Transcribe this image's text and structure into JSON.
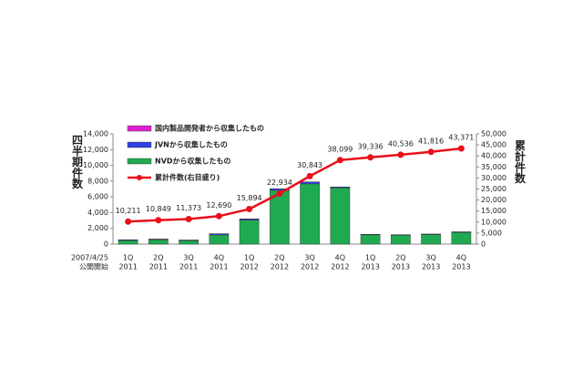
{
  "chart_data": {
    "type": "bar_line",
    "categories": [
      [
        "1Q",
        "2011"
      ],
      [
        "2Q",
        "2011"
      ],
      [
        "3Q",
        "2011"
      ],
      [
        "4Q",
        "2011"
      ],
      [
        "1Q",
        "2012"
      ],
      [
        "2Q",
        "2012"
      ],
      [
        "3Q",
        "2012"
      ],
      [
        "4Q",
        "2012"
      ],
      [
        "1Q",
        "2013"
      ],
      [
        "2Q",
        "2013"
      ],
      [
        "3Q",
        "2013"
      ],
      [
        "4Q",
        "2013"
      ]
    ],
    "x_start_note": [
      "2007/4/25",
      "公開開始"
    ],
    "y_label": "四半期件数",
    "y2_label": "累計件数",
    "series": [
      {
        "name": "国内製品開発者から収集したもの",
        "color": "#e020d0",
        "type": "bar",
        "values": [
          10,
          10,
          10,
          10,
          10,
          10,
          10,
          10,
          10,
          10,
          10,
          10
        ]
      },
      {
        "name": "JVNから収集したもの",
        "color": "#3040e0",
        "type": "bar",
        "values": [
          80,
          90,
          80,
          150,
          150,
          200,
          250,
          100,
          60,
          60,
          60,
          70
        ]
      },
      {
        "name": "NVDから収集したもの",
        "color": "#1faa50",
        "type": "bar",
        "values": [
          460,
          540,
          430,
          1160,
          3040,
          6830,
          7650,
          7150,
          1170,
          1130,
          1210,
          1480
        ]
      },
      {
        "name": "累計件数(右目盛り)",
        "color": "#e8101a",
        "type": "line",
        "axis": "y2",
        "values": [
          10211,
          10849,
          11373,
          12690,
          15894,
          22934,
          30843,
          38099,
          39336,
          40536,
          41816,
          43371
        ],
        "value_labels": [
          "10,211",
          "10,849",
          "11,373",
          "12,690",
          "15,894",
          "22,934",
          "30,843",
          "38,099",
          "39,336",
          "40,536",
          "41,816",
          "43,371"
        ]
      }
    ],
    "ylim": [
      0,
      14000
    ],
    "yticks": [
      0,
      {
        "value": 2000,
        "label": "2,000"
      },
      {
        "value": 4000,
        "label": "4,000"
      },
      {
        "value": 6000,
        "label": "6,000"
      },
      {
        "value": 8000,
        "label": "8,000"
      },
      {
        "value": 10000,
        "label": "10,000"
      },
      {
        "value": 12000,
        "label": "12,000"
      },
      {
        "value": 14000,
        "label": "14,000"
      }
    ],
    "y2lim": [
      0,
      50000
    ],
    "y2ticks": [
      0,
      {
        "value": 5000,
        "label": "5,000"
      },
      {
        "value": 10000,
        "label": "10,000"
      },
      {
        "value": 15000,
        "label": "15,000"
      },
      {
        "value": 20000,
        "label": "20,000"
      },
      {
        "value": 25000,
        "label": "25,000"
      },
      {
        "value": 30000,
        "label": "30,000"
      },
      {
        "value": 35000,
        "label": "35,000"
      },
      {
        "value": 40000,
        "label": "40,000"
      },
      {
        "value": 45000,
        "label": "45,000"
      },
      {
        "value": 50000,
        "label": "50,000"
      }
    ]
  }
}
